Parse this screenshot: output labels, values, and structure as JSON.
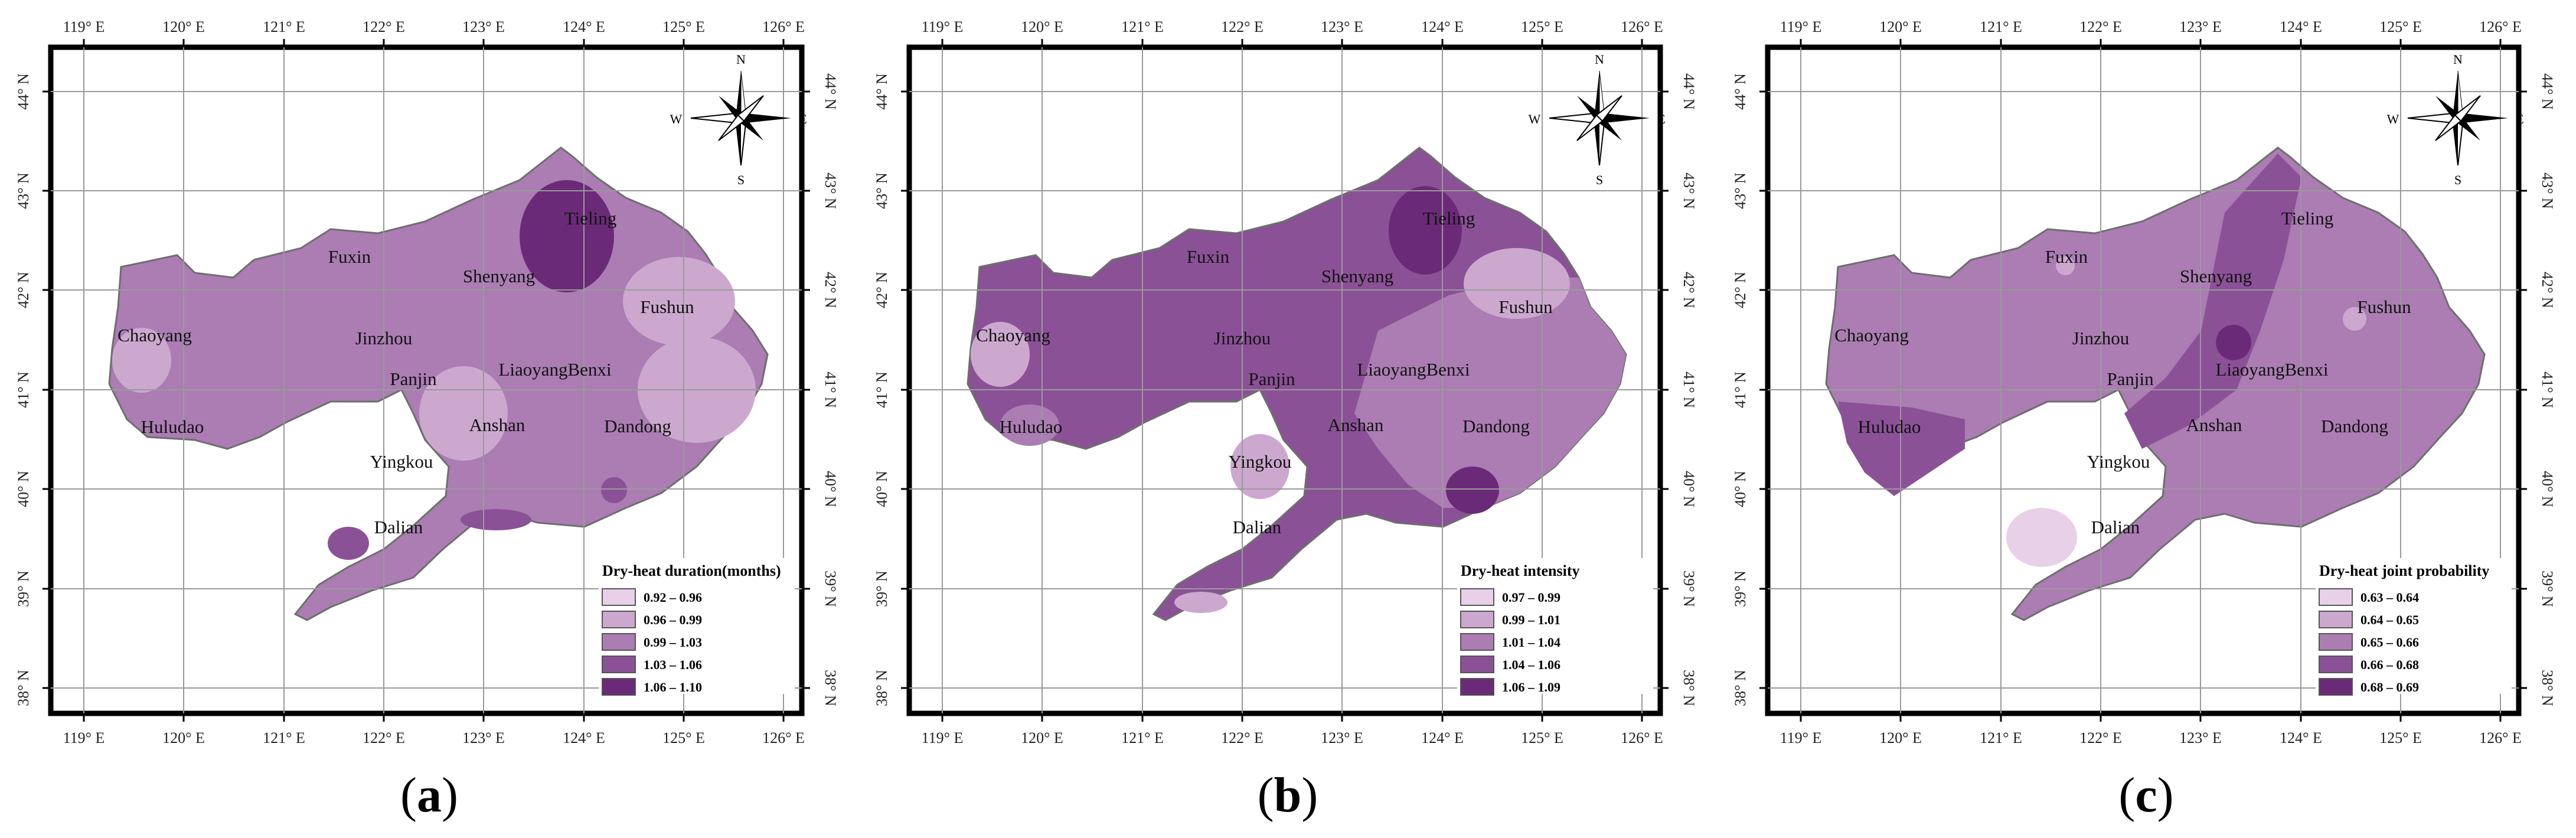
{
  "x_ticks": [
    "119° E",
    "120° E",
    "121° E",
    "122° E",
    "123° E",
    "124° E",
    "125° E",
    "126° E"
  ],
  "y_ticks": [
    "38° N",
    "39° N",
    "40° N",
    "41° N",
    "42° N",
    "43° N",
    "44° N"
  ],
  "compass": {
    "n": "N",
    "s": "S",
    "e": "E",
    "w": "W"
  },
  "cities": [
    "Tieling",
    "Fuxin",
    "Shenyang",
    "Fushun",
    "Chaoyang",
    "Jinzhou",
    "Panjin",
    "LiaoyangBenxi",
    "Huludao",
    "Anshan",
    "Dandong",
    "Yingkou",
    "Dalian"
  ],
  "panels": [
    {
      "caption_letter": "a",
      "legend_title": "Dry-heat duration(months)",
      "legend": [
        {
          "label": "0.92 – 0.96",
          "color": "#e8d1e8"
        },
        {
          "label": "0.96 – 0.99",
          "color": "#cca8cf"
        },
        {
          "label": "0.99 – 1.03",
          "color": "#ab7db3"
        },
        {
          "label": "1.03 – 1.06",
          "color": "#8b5197"
        },
        {
          "label": "1.06 – 1.10",
          "color": "#6b2a78"
        }
      ],
      "base_color": "#ab7db3"
    },
    {
      "caption_letter": "b",
      "legend_title": "Dry-heat intensity",
      "legend": [
        {
          "label": "0.97 – 0.99",
          "color": "#e8d1e8"
        },
        {
          "label": "0.99 – 1.01",
          "color": "#cca8cf"
        },
        {
          "label": "1.01 – 1.04",
          "color": "#ab7db3"
        },
        {
          "label": "1.04 – 1.06",
          "color": "#8b5197"
        },
        {
          "label": "1.06 – 1.09",
          "color": "#6b2a78"
        }
      ],
      "base_color": "#8b5197"
    },
    {
      "caption_letter": "c",
      "legend_title": "Dry-heat joint probability",
      "legend": [
        {
          "label": "0.63 – 0.64",
          "color": "#e8d1e8"
        },
        {
          "label": "0.64 – 0.65",
          "color": "#cca8cf"
        },
        {
          "label": "0.65 – 0.66",
          "color": "#ab7db3"
        },
        {
          "label": "0.66 – 0.68",
          "color": "#8b5197"
        },
        {
          "label": "0.68 – 0.69",
          "color": "#6b2a78"
        }
      ],
      "base_color": "#ab7db3"
    }
  ]
}
